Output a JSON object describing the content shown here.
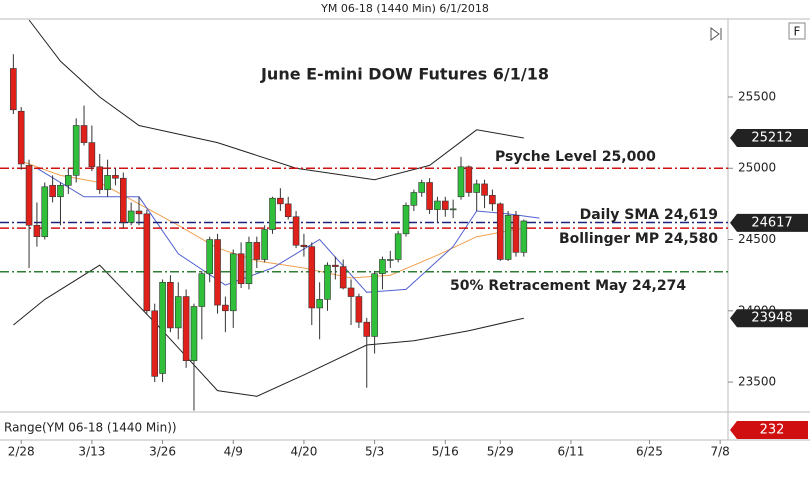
{
  "chart_data": {
    "type": "candlestick",
    "header": "YM 06-18 (1440 Min)  6/1/2018",
    "title": "June E-mini DOW Futures 6/1/18",
    "button": "F",
    "x": [
      -1,
      0,
      1,
      2,
      3,
      4,
      5,
      6,
      7,
      8,
      9,
      10,
      11,
      12,
      13,
      14,
      15,
      16,
      17,
      18,
      19,
      20,
      21,
      22,
      23,
      24,
      25,
      26,
      27,
      28,
      29,
      30,
      31,
      32,
      33,
      34,
      35,
      36,
      37,
      38,
      39,
      40,
      41,
      42,
      43,
      44,
      45,
      46,
      47,
      48,
      49,
      50,
      51,
      52,
      53,
      54,
      55,
      56,
      57,
      58,
      59,
      60,
      61,
      62,
      63,
      64
    ],
    "open": [
      25700,
      25400,
      25020,
      24600,
      24520,
      24880,
      24800,
      24880,
      24950,
      25300,
      25180,
      25010,
      24850,
      24950,
      24930,
      24620,
      24700,
      24680,
      24000,
      23560,
      24200,
      23880,
      24100,
      23650,
      24030,
      24260,
      24500,
      24040,
      24000,
      24400,
      24190,
      24480,
      24360,
      24570,
      24790,
      24750,
      24660,
      24460,
      24450,
      24020,
      24080,
      24320,
      24310,
      24160,
      24100,
      23920,
      23820,
      24260,
      24360,
      24360,
      24540,
      24740,
      24830,
      24900,
      24710,
      24770,
      24710,
      24800,
      25010,
      24830,
      24890,
      24810,
      24750,
      24360,
      24670,
      24410
    ],
    "high": [
      25800,
      25430,
      25060,
      24760,
      24900,
      24950,
      24900,
      25000,
      25350,
      25440,
      25300,
      25100,
      25060,
      25000,
      24970,
      24760,
      24800,
      24710,
      24050,
      24220,
      24250,
      24200,
      24150,
      24050,
      24280,
      24520,
      24540,
      24100,
      24430,
      24480,
      24520,
      24520,
      24600,
      24800,
      24860,
      24800,
      24700,
      24540,
      24480,
      24200,
      24340,
      24380,
      24360,
      24220,
      24120,
      23950,
      24280,
      24380,
      24420,
      24560,
      24760,
      24850,
      24920,
      24930,
      24800,
      24800,
      24780,
      25080,
      25020,
      24920,
      24920,
      24850,
      24760,
      24700,
      24700,
      24640
    ],
    "low": [
      25380,
      24990,
      24300,
      24450,
      24500,
      24760,
      24600,
      24820,
      24900,
      25160,
      24980,
      24820,
      24800,
      24880,
      24580,
      24600,
      24600,
      23980,
      23500,
      23500,
      23850,
      23800,
      23600,
      23300,
      23800,
      24200,
      23980,
      23850,
      23880,
      24160,
      24150,
      24300,
      24340,
      24540,
      24700,
      24640,
      24440,
      24380,
      23900,
      23800,
      24000,
      24220,
      24150,
      23900,
      23880,
      23460,
      23700,
      24150,
      24300,
      24340,
      24520,
      24700,
      24800,
      24680,
      24620,
      24660,
      24650,
      24780,
      24800,
      24700,
      24720,
      24700,
      24350,
      24350,
      24380,
      24380
    ],
    "close": [
      25410,
      25030,
      24600,
      24520,
      24870,
      24800,
      24880,
      24950,
      25300,
      25180,
      25010,
      24850,
      24950,
      24930,
      24620,
      24700,
      24680,
      24000,
      23540,
      24200,
      23880,
      24100,
      23650,
      24030,
      24260,
      24500,
      24040,
      24000,
      24400,
      24190,
      24480,
      24360,
      24570,
      24790,
      24750,
      24660,
      24460,
      24450,
      24020,
      24080,
      24320,
      24310,
      24160,
      24100,
      23920,
      23820,
      24260,
      24360,
      24360,
      24540,
      24740,
      24830,
      24900,
      24710,
      24770,
      24710,
      24715,
      25010,
      24830,
      24890,
      24810,
      24750,
      24360,
      24670,
      24410,
      24630
    ],
    "up_color": "#2fbf3a",
    "down_color": "#e0201b",
    "xlim": [
      -2.7,
      90
    ],
    "xticks": [
      {
        "value": 0,
        "label": "2/28"
      },
      {
        "value": 9,
        "label": "3/13"
      },
      {
        "value": 18,
        "label": "3/26"
      },
      {
        "value": 27,
        "label": "4/9"
      },
      {
        "value": 36,
        "label": "4/20"
      },
      {
        "value": 45,
        "label": "5/3"
      },
      {
        "value": 54,
        "label": "5/16"
      },
      {
        "value": 61,
        "label": "5/29"
      },
      {
        "value": 70,
        "label": "6/11"
      },
      {
        "value": 80,
        "label": "6/25"
      },
      {
        "value": 89,
        "label": "7/8"
      }
    ],
    "ylim": [
      23290,
      26040
    ],
    "yticks": [
      23500,
      24000,
      24500,
      25000,
      25500
    ],
    "lines": [
      {
        "color": "#222222",
        "x": [
          1,
          5,
          10,
          15,
          25,
          35,
          45,
          52,
          58,
          64
        ],
        "values": [
          26040,
          25750,
          25500,
          25300,
          25180,
          25000,
          24920,
          25020,
          25270,
          25212
        ]
      },
      {
        "color": "#222222",
        "x": [
          -1,
          3,
          10,
          18,
          25,
          30,
          36,
          44,
          50,
          57,
          64
        ],
        "values": [
          23900,
          24080,
          24320,
          23860,
          23440,
          23400,
          23550,
          23760,
          23790,
          23860,
          23948
        ]
      },
      {
        "color": "#f0a050",
        "x": [
          0,
          5,
          10,
          15,
          20,
          25,
          30,
          36,
          42,
          47,
          53,
          58,
          64
        ],
        "values": [
          25050,
          24950,
          24900,
          24750,
          24600,
          24440,
          24350,
          24300,
          24230,
          24250,
          24390,
          24520,
          24580
        ]
      },
      {
        "color": "#5060d0",
        "x": [
          2,
          8,
          15,
          20,
          26,
          32,
          38,
          44,
          49,
          55,
          58,
          62,
          66
        ],
        "values": [
          25000,
          24800,
          24800,
          24400,
          24180,
          24300,
          24500,
          24130,
          24150,
          24450,
          24700,
          24680,
          24650
        ]
      }
    ],
    "levels": [
      {
        "value": 25000,
        "label": "Psyche Level 25,000",
        "color": "#d01010"
      },
      {
        "value": 24619,
        "label": "Daily SMA 24,619",
        "color": "#1a237e"
      },
      {
        "value": 24580,
        "label": "Bollinger MP 24,580",
        "color": "#d01010"
      },
      {
        "value": 24274,
        "label": "50% Retracement May 24,274",
        "color": "#2e7d32"
      }
    ],
    "price_labels": [
      25212,
      24617,
      23948
    ],
    "range_label": "Range(YM 06-18 (1440 Min))",
    "range_value": 232
  }
}
